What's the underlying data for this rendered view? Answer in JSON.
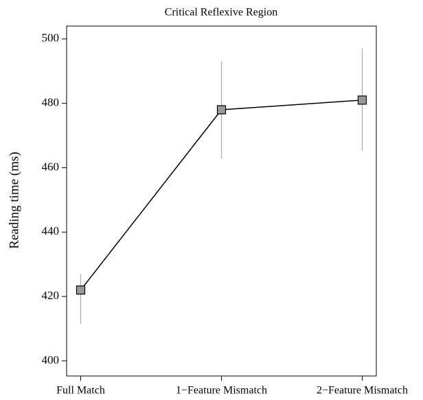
{
  "chart_data": {
    "type": "line",
    "title": "Critical Reflexive Region",
    "y_label": "Reading time (ms)",
    "categories": [
      "Full Match",
      "1−Feature Mismatch",
      "2−Feature Mismatch"
    ],
    "values": [
      422,
      478,
      481
    ],
    "ci_lower": [
      411.5,
      462.8,
      465.2
    ],
    "ci_upper": [
      427,
      493,
      497
    ],
    "color": "#000000",
    "marker_color": "#999999",
    "error_color": "#aaaaaa",
    "ylim": [
      395.3,
      504
    ],
    "yticks": [
      400,
      420,
      440,
      460,
      480,
      500
    ]
  }
}
